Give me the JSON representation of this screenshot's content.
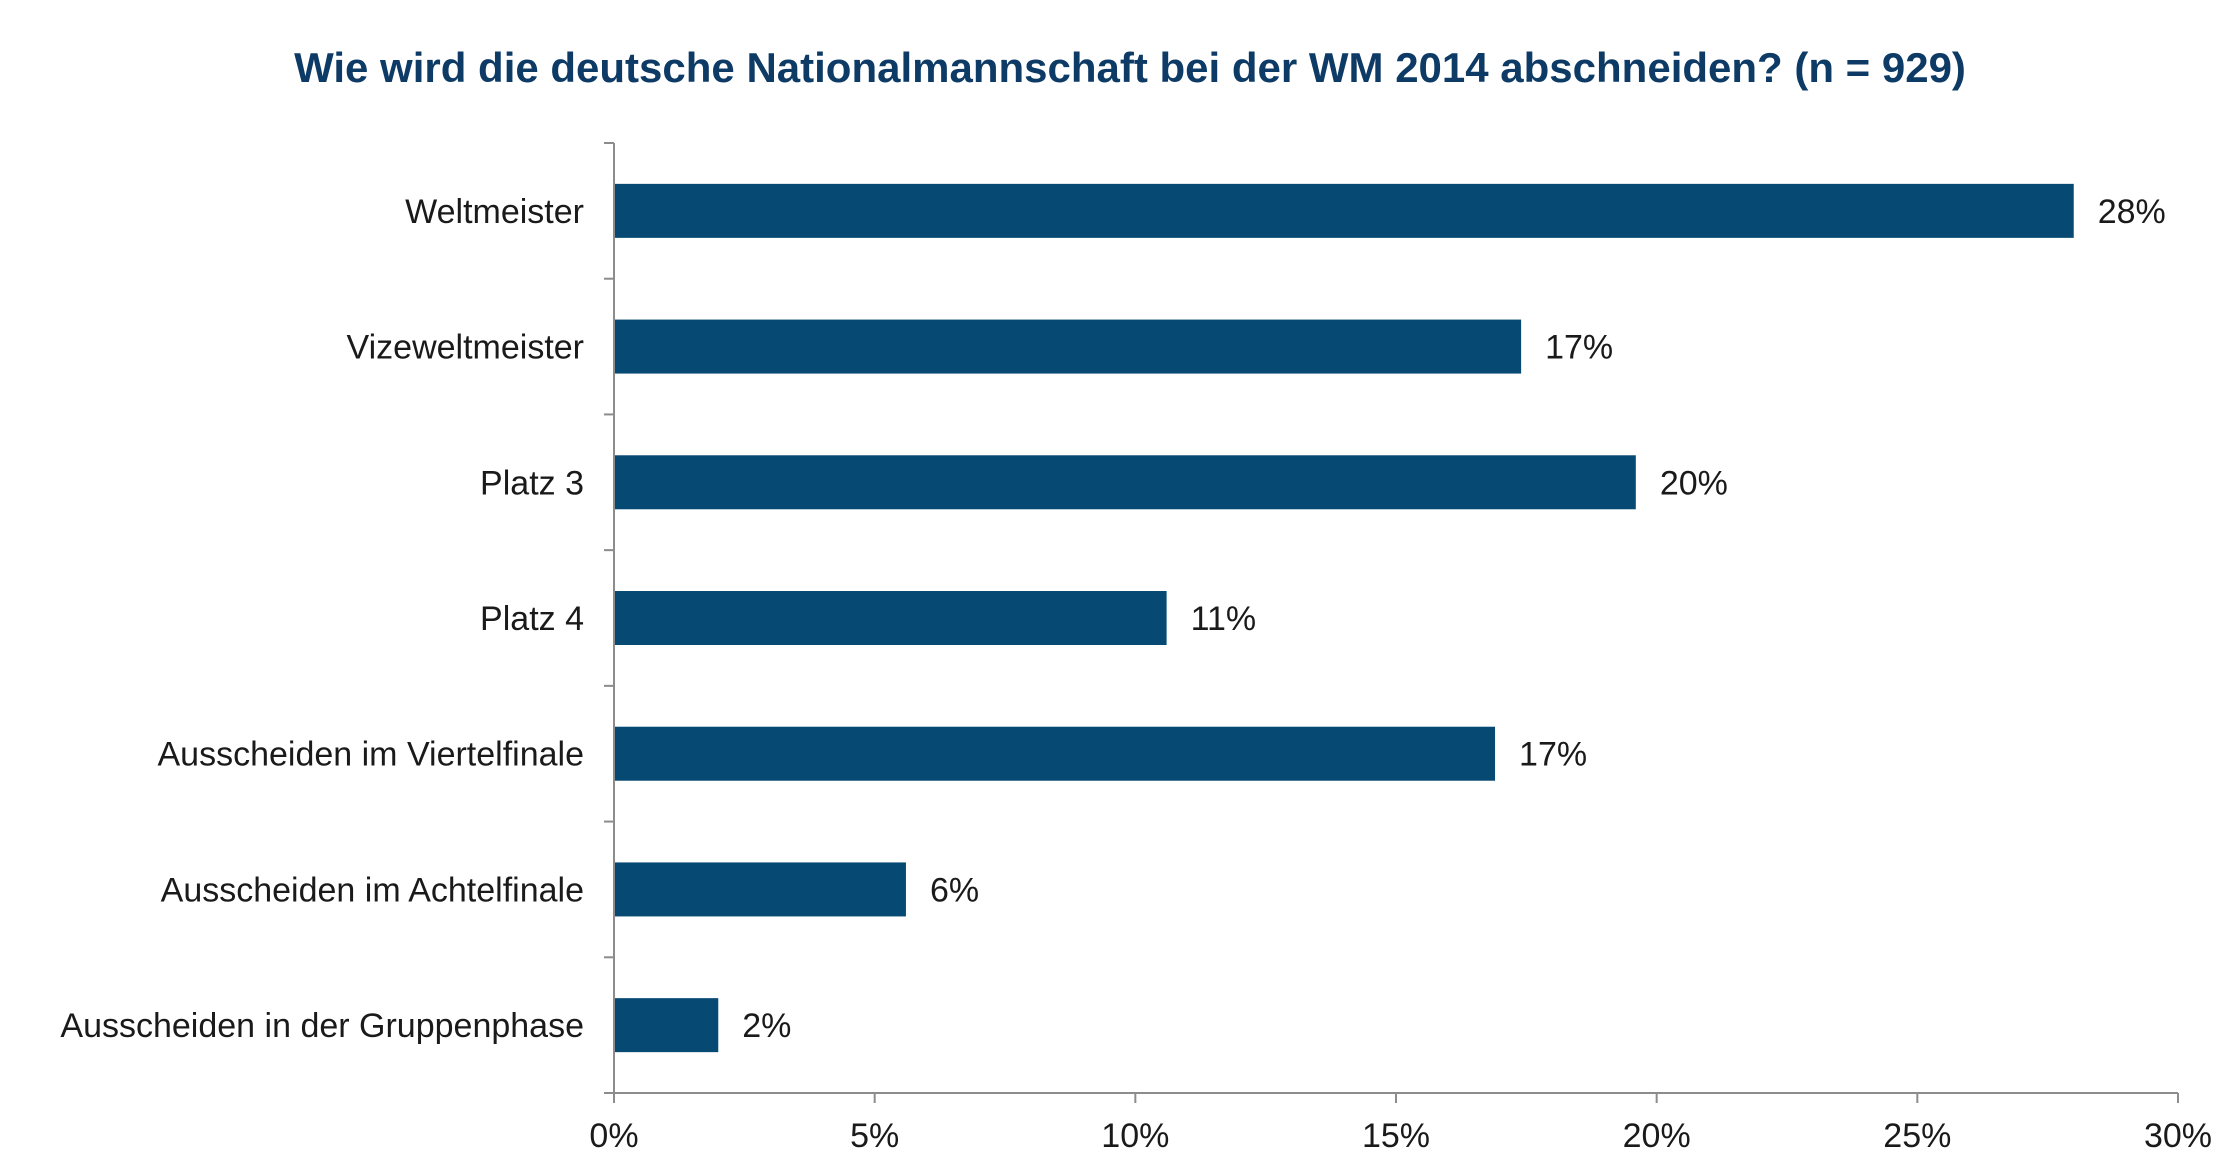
{
  "chart_data": {
    "type": "bar",
    "orientation": "horizontal",
    "title": "Wie wird die deutsche Nationalmannschaft bei der WM 2014 abschneiden? (n = 929)",
    "categories": [
      "Weltmeister",
      "Vizeweltmeister",
      "Platz 3",
      "Platz 4",
      "Ausscheiden im Viertelfinale",
      "Ausscheiden im Achtelfinale",
      "Ausscheiden in der Gruppenphase"
    ],
    "values": [
      28.0,
      17.4,
      19.6,
      10.6,
      16.9,
      5.6,
      2.0
    ],
    "value_labels": [
      "28%",
      "17%",
      "20%",
      "11%",
      "17%",
      "6%",
      "2%"
    ],
    "xlim": [
      0,
      30
    ],
    "xticks": [
      0,
      5,
      10,
      15,
      20,
      25,
      30
    ],
    "xtick_labels": [
      "0%",
      "5%",
      "10%",
      "15%",
      "20%",
      "25%",
      "30%"
    ],
    "xlabel": "",
    "ylabel": "",
    "grid": false,
    "legend": "none",
    "bar_color": "#064a73",
    "title_color": "#0d3b66"
  }
}
